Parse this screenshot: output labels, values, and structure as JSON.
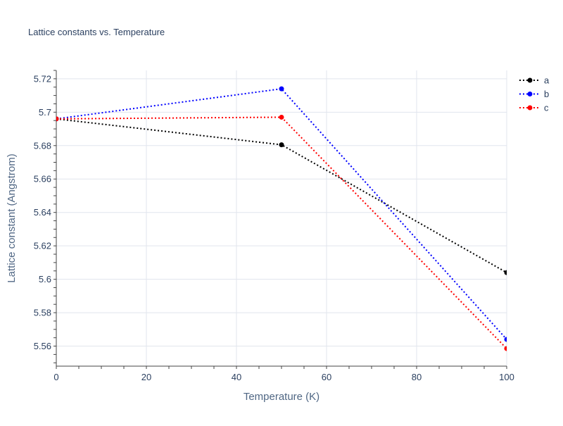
{
  "chart_data": {
    "type": "line",
    "title": "Lattice constants vs. Temperature",
    "xlabel": "Temperature (K)",
    "ylabel": "Lattice constant (Angstrom)",
    "x": [
      0,
      50,
      100
    ],
    "xlim": [
      0,
      100
    ],
    "ylim": [
      5.548,
      5.725
    ],
    "xticks": [
      0,
      20,
      40,
      60,
      80,
      100
    ],
    "xtick_labels": [
      "0",
      "20",
      "40",
      "60",
      "80",
      "100"
    ],
    "yticks": [
      5.56,
      5.58,
      5.6,
      5.62,
      5.64,
      5.66,
      5.68,
      5.7,
      5.72
    ],
    "ytick_labels": [
      "5.56",
      "5.58",
      "5.6",
      "5.62",
      "5.64",
      "5.66",
      "5.68",
      "5.7",
      "5.72"
    ],
    "grid": true,
    "legend_position": "top-right",
    "line_style": "dotted",
    "series": [
      {
        "name": "a",
        "color": "#000000",
        "values": [
          5.696,
          5.6805,
          5.604
        ]
      },
      {
        "name": "b",
        "color": "#0000ff",
        "values": [
          5.696,
          5.714,
          5.564
        ]
      },
      {
        "name": "c",
        "color": "#ff0000",
        "values": [
          5.696,
          5.697,
          5.5585
        ]
      }
    ]
  }
}
